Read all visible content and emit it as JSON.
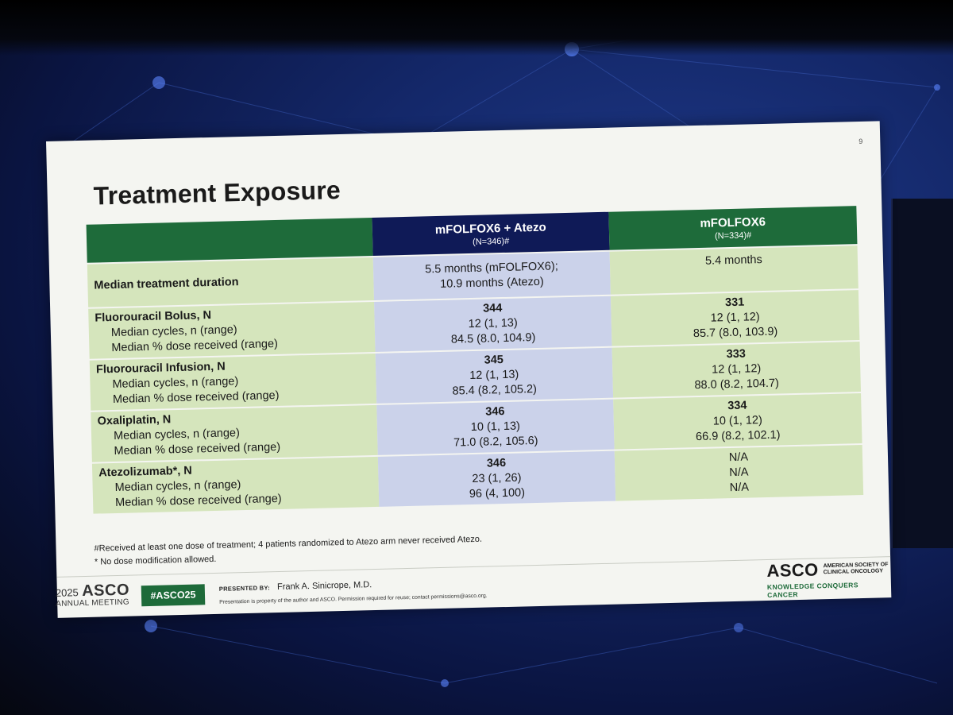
{
  "slide": {
    "page_number": "9",
    "title": "Treatment Exposure",
    "columns": [
      {
        "name": "mFOLFOX6 + Atezo",
        "n": "(N=346)#"
      },
      {
        "name": "mFOLFOX6",
        "n": "(N=334)#"
      }
    ],
    "rows": [
      {
        "label": "Median treatment duration",
        "atezo": [
          "5.5 months (mFOLFOX6);",
          "10.9 months (Atezo)"
        ],
        "folfox": "5.4 months"
      },
      {
        "label": "Fluorouracil Bolus, N",
        "sub1": "Median cycles, n (range)",
        "sub2": "Median % dose received (range)",
        "atezo": [
          "344",
          "12 (1, 13)",
          "84.5 (8.0, 104.9)"
        ],
        "folfox": [
          "331",
          "12 (1, 12)",
          "85.7 (8.0, 103.9)"
        ]
      },
      {
        "label": "Fluorouracil Infusion, N",
        "sub1": "Median cycles, n (range)",
        "sub2": "Median % dose received (range)",
        "atezo": [
          "345",
          "12 (1, 13)",
          "85.4 (8.2, 105.2)"
        ],
        "folfox": [
          "333",
          "12 (1, 12)",
          "88.0 (8.2, 104.7)"
        ]
      },
      {
        "label": "Oxaliplatin, N",
        "sub1": "Median cycles, n (range)",
        "sub2": "Median % dose received (range)",
        "atezo": [
          "346",
          "10 (1, 13)",
          "71.0 (8.2, 105.6)"
        ],
        "folfox": [
          "334",
          "10 (1, 12)",
          "66.9 (8.2, 102.1)"
        ]
      },
      {
        "label": "Atezolizumab*, N",
        "sub1": "Median cycles, n (range)",
        "sub2": "Median % dose received (range)",
        "atezo": [
          "346",
          "23 (1, 26)",
          "96 (4, 100)"
        ],
        "folfox": [
          "N/A",
          "N/A",
          "N/A"
        ]
      }
    ],
    "footnotes": [
      "#Received at least one dose of treatment; 4 patients randomized to Atezo arm never received Atezo.",
      "* No dose modification allowed."
    ]
  },
  "footer": {
    "meeting_year": "2025",
    "meeting_brand": "ASCO",
    "meeting_label": "ANNUAL MEETING",
    "hashtag": "#ASCO25",
    "presented_by_label": "PRESENTED BY:",
    "presenter": "Frank A. Sinicrope, M.D.",
    "disclaimer": "Presentation is property of the author and ASCO. Permission required for reuse; contact permissions@asco.org.",
    "logo_text": "ASCO",
    "logo_org": "AMERICAN SOCIETY OF CLINICAL ONCOLOGY",
    "logo_tagline": "KNOWLEDGE CONQUERS CANCER"
  },
  "colors": {
    "header_green": "#1e6b3a",
    "header_navy": "#0f1a57",
    "row_green": "#d5e5bc",
    "row_lavender": "#cbd2ea",
    "slide_bg": "#f4f5f1"
  }
}
